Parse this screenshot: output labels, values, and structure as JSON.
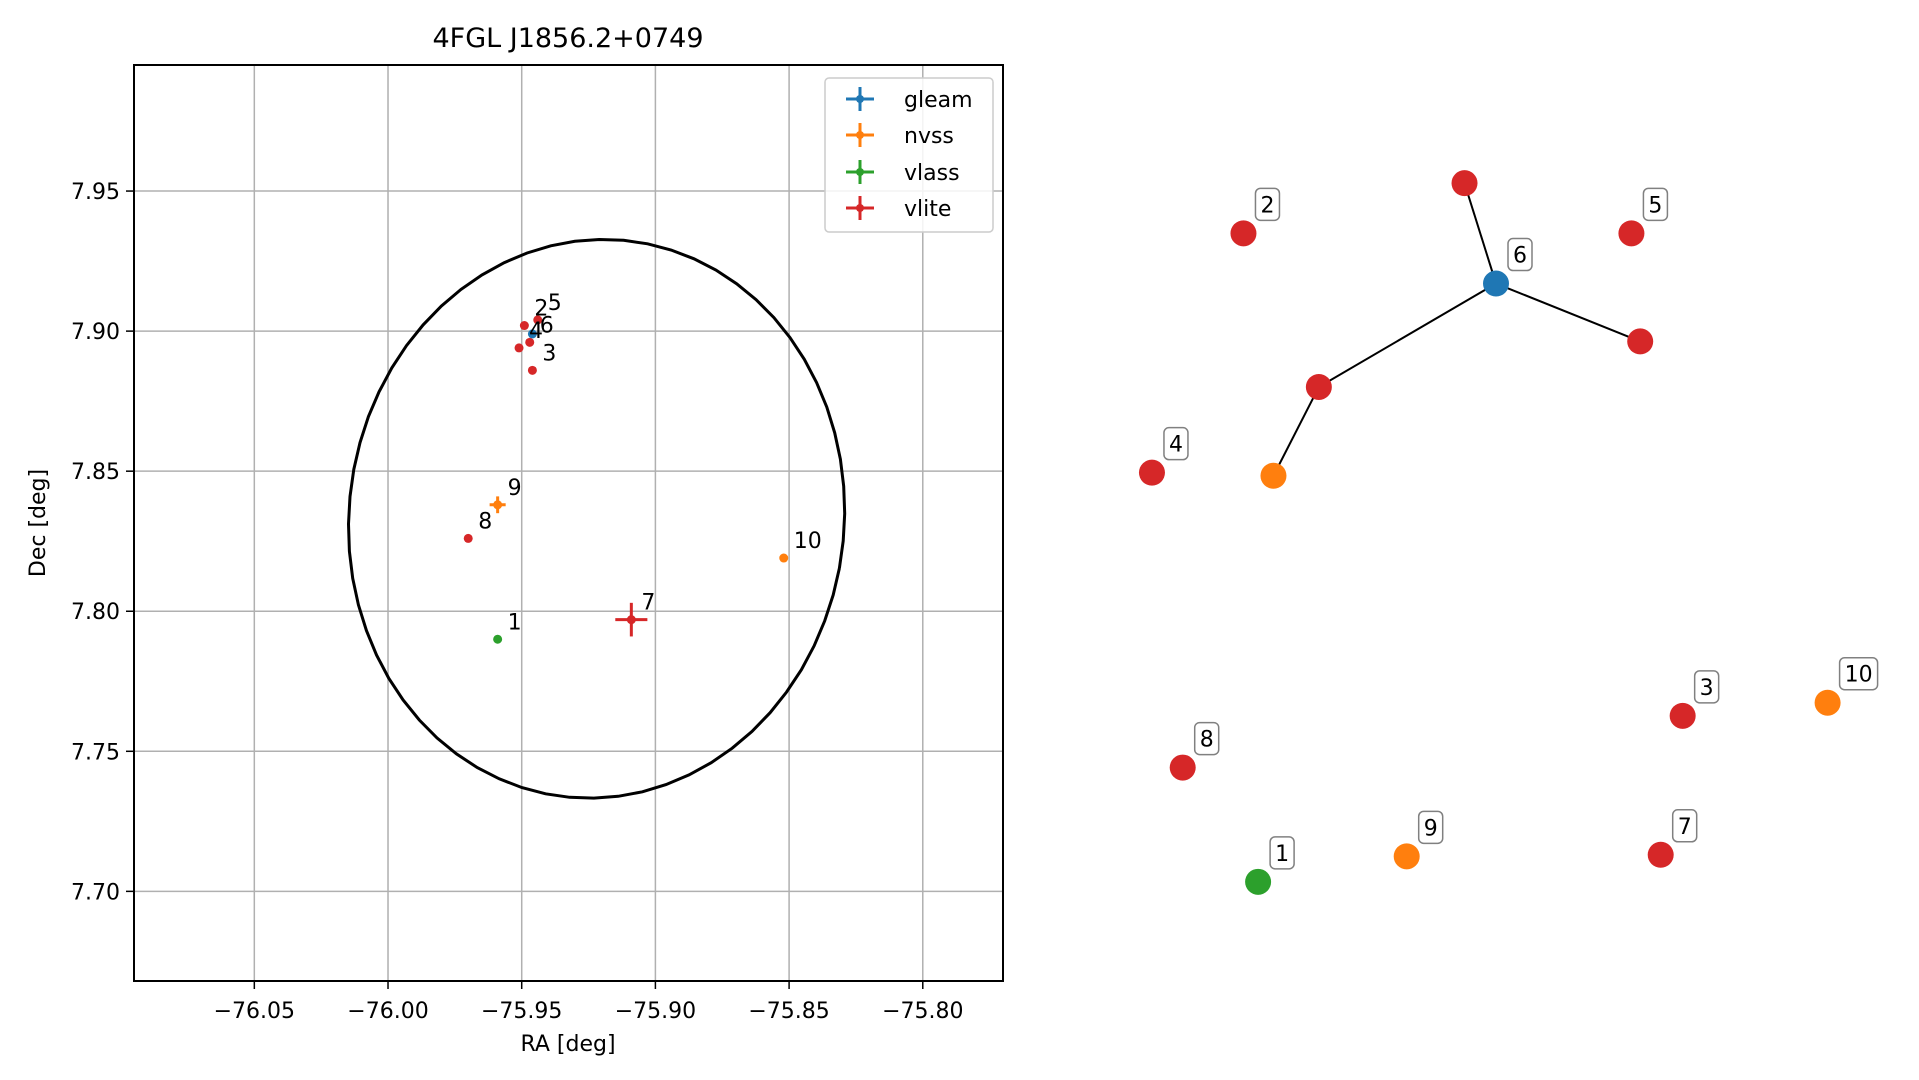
{
  "chart_data": [
    {
      "type": "scatter",
      "title": "4FGL J1856.2+0749",
      "xlabel": "RA [deg]",
      "ylabel": "Dec [deg]",
      "xlim": [
        -76.095,
        -75.77
      ],
      "ylim": [
        7.668,
        7.995
      ],
      "xticks": [
        -76.05,
        -76.0,
        -75.95,
        -75.9,
        -75.85,
        -75.8
      ],
      "xtick_labels": [
        "−76.05",
        "−76.00",
        "−75.95",
        "−75.90",
        "−75.85",
        "−75.80"
      ],
      "yticks": [
        7.7,
        7.75,
        7.8,
        7.85,
        7.9,
        7.95
      ],
      "ytick_labels": [
        "7.70",
        "7.75",
        "7.80",
        "7.85",
        "7.90",
        "7.95"
      ],
      "grid": true,
      "legend_position": "top-right",
      "ellipse": {
        "center": [
          -75.922,
          7.833
        ],
        "semi_x": 0.0925,
        "semi_y": 0.1,
        "rotation_deg": -11
      },
      "series": [
        {
          "name": "gleam",
          "color": "#1f77b4",
          "points": [
            {
              "x": -75.946,
              "y": 7.899,
              "err": 0.0015
            }
          ]
        },
        {
          "name": "nvss",
          "color": "#ff7f0e",
          "points": [
            {
              "x": -75.959,
              "y": 7.838,
              "err": 0.003
            },
            {
              "x": -75.852,
              "y": 7.819,
              "err": 0
            }
          ]
        },
        {
          "name": "vlass",
          "color": "#2ca02c",
          "points": [
            {
              "x": -75.959,
              "y": 7.79,
              "err": 0
            }
          ]
        },
        {
          "name": "vlite",
          "color": "#d62728",
          "points": [
            {
              "x": -75.949,
              "y": 7.902,
              "err": 0
            },
            {
              "x": -75.946,
              "y": 7.886,
              "err": 0
            },
            {
              "x": -75.951,
              "y": 7.894,
              "err": 0
            },
            {
              "x": -75.944,
              "y": 7.904,
              "err": 0
            },
            {
              "x": -75.947,
              "y": 7.896,
              "err": 0
            },
            {
              "x": -75.909,
              "y": 7.797,
              "err": 0.006
            },
            {
              "x": -75.97,
              "y": 7.826,
              "err": 0
            }
          ]
        }
      ],
      "annotations": [
        {
          "text": "1",
          "x": -75.959,
          "y": 7.79
        },
        {
          "text": "2",
          "x": -75.949,
          "y": 7.902
        },
        {
          "text": "3",
          "x": -75.946,
          "y": 7.886
        },
        {
          "text": "4",
          "x": -75.951,
          "y": 7.894
        },
        {
          "text": "5",
          "x": -75.944,
          "y": 7.904
        },
        {
          "text": "6",
          "x": -75.947,
          "y": 7.896
        },
        {
          "text": "7",
          "x": -75.909,
          "y": 7.797
        },
        {
          "text": "8",
          "x": -75.97,
          "y": 7.826
        },
        {
          "text": "9",
          "x": -75.959,
          "y": 7.838
        },
        {
          "text": "10",
          "x": -75.852,
          "y": 7.819
        }
      ]
    },
    {
      "type": "network",
      "axes_visible": false,
      "nodes": [
        {
          "id": "1",
          "label": "1",
          "color": "#2ca02c",
          "pos": [
            0.175,
            0.065
          ]
        },
        {
          "id": "2",
          "label": "2",
          "color": "#d62728",
          "pos": [
            0.155,
            0.905
          ]
        },
        {
          "id": "3",
          "label": "3",
          "color": "#d62728",
          "pos": [
            0.755,
            0.28
          ]
        },
        {
          "id": "4",
          "label": "4",
          "color": "#d62728",
          "pos": [
            0.03,
            0.595
          ]
        },
        {
          "id": "5",
          "label": "5",
          "color": "#d62728",
          "pos": [
            0.685,
            0.905
          ]
        },
        {
          "id": "6",
          "label": "6",
          "color": "#1f77b4",
          "pos": [
            0.5,
            0.84
          ]
        },
        {
          "id": "7",
          "label": "7",
          "color": "#d62728",
          "pos": [
            0.725,
            0.1
          ]
        },
        {
          "id": "8",
          "label": "8",
          "color": "#d62728",
          "pos": [
            0.072,
            0.213
          ]
        },
        {
          "id": "9",
          "label": "9",
          "color": "#ff7f0e",
          "pos": [
            0.378,
            0.098
          ]
        },
        {
          "id": "10",
          "label": "10",
          "color": "#ff7f0e",
          "pos": [
            0.953,
            0.297
          ]
        },
        {
          "id": "a",
          "label": "",
          "color": "#d62728",
          "pos": [
            0.457,
            0.97
          ]
        },
        {
          "id": "b",
          "label": "",
          "color": "#d62728",
          "pos": [
            0.697,
            0.765
          ]
        },
        {
          "id": "c",
          "label": "",
          "color": "#d62728",
          "pos": [
            0.258,
            0.706
          ]
        },
        {
          "id": "d",
          "label": "",
          "color": "#ff7f0e",
          "pos": [
            0.196,
            0.591
          ]
        }
      ],
      "edges": [
        [
          "6",
          "a"
        ],
        [
          "6",
          "b"
        ],
        [
          "6",
          "c"
        ],
        [
          "c",
          "d"
        ]
      ]
    }
  ]
}
